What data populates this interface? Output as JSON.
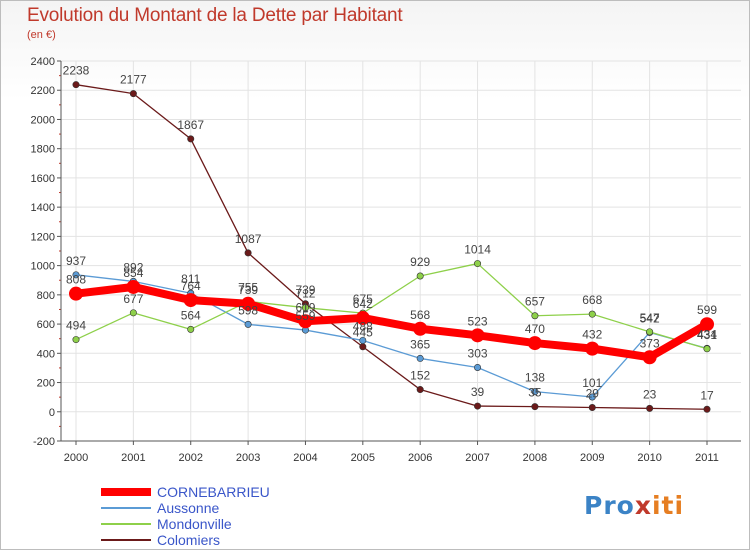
{
  "header": {
    "title": "Evolution du Montant de la Dette par Habitant",
    "subtitle": "(en €)"
  },
  "logo": {
    "text": "Proxiti"
  },
  "chart_data": {
    "type": "line",
    "x": [
      2000,
      2001,
      2002,
      2003,
      2004,
      2005,
      2006,
      2007,
      2008,
      2009,
      2010,
      2011
    ],
    "ylim": [
      -200,
      2400
    ],
    "yticks": [
      -200,
      0,
      200,
      400,
      600,
      800,
      1000,
      1200,
      1400,
      1600,
      1800,
      2000,
      2200,
      2400
    ],
    "grid": true,
    "legend": "bottom-left",
    "series": [
      {
        "name": "CORNEBARRIEU",
        "color": "#ff0000",
        "values": [
          808,
          854,
          764,
          739,
          619,
          642,
          568,
          523,
          470,
          432,
          373,
          599
        ]
      },
      {
        "name": "Aussonne",
        "color": "#5b9bd5",
        "values": [
          937,
          892,
          811,
          598,
          559,
          488,
          365,
          303,
          138,
          101,
          542,
          434
        ]
      },
      {
        "name": "Mondonville",
        "color": "#8ed04a",
        "values": [
          494,
          677,
          564,
          755,
          712,
          675,
          929,
          1014,
          657,
          668,
          547,
          431
        ]
      },
      {
        "name": "Colomiers",
        "color": "#6b1a1a",
        "values": [
          2238,
          2177,
          1867,
          1087,
          739,
          445,
          152,
          39,
          35,
          29,
          23,
          17
        ]
      }
    ],
    "point_labels": [
      {
        "series": "CORNEBARRIEU",
        "labels": [
          "808",
          "854",
          "764",
          "739",
          "619",
          "642",
          "568",
          "523",
          "470",
          "432",
          "373",
          "599"
        ]
      },
      {
        "series": "Aussonne",
        "labels": [
          "937",
          "892",
          "811",
          "598",
          "559",
          "488",
          "365",
          "303",
          "138",
          "101",
          "542",
          "434"
        ]
      },
      {
        "series": "Mondonville",
        "labels": [
          "494",
          "677",
          "564",
          "755",
          "712",
          "675",
          "929",
          "1014",
          "657",
          "668",
          "547",
          "431"
        ]
      },
      {
        "series": "Colomiers",
        "labels": [
          "2238",
          "2177",
          "1867",
          "1087",
          "739",
          "445",
          "152",
          "39",
          "35",
          "29",
          "23",
          "17"
        ]
      }
    ]
  }
}
